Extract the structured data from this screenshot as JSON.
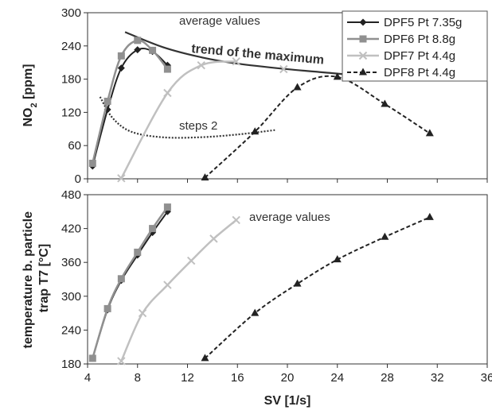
{
  "chart_data": [
    {
      "type": "line",
      "ylabel_parts": [
        "NO",
        "2",
        " [ppm]"
      ],
      "xlabel": "",
      "xlim": [
        4,
        36
      ],
      "ylim": [
        0,
        300
      ],
      "x_ticks": [
        "4",
        "8",
        "12",
        "16",
        "20",
        "24",
        "28",
        "32",
        "36"
      ],
      "y_ticks": [
        "0",
        "60",
        "120",
        "180",
        "240",
        "300"
      ],
      "annotations": {
        "average": "average values",
        "trend": "trend of the maximum",
        "steps": "steps 2"
      },
      "legend": [
        {
          "label": "DPF5 Pt 7.35g"
        },
        {
          "label": "DPF6 Pt 8.8g"
        },
        {
          "label": "DPF7 Pt 4.4g"
        },
        {
          "label": "DPF8 Pt 4.4g"
        }
      ],
      "series": [
        {
          "name": "DPF5 Pt 7.35g",
          "color": "#222222",
          "marker": "diamond",
          "dashed": false,
          "x": [
            4.4,
            5.6,
            6.7,
            8.0,
            9.2,
            10.4
          ],
          "y": [
            23,
            125,
            200,
            233,
            230,
            205
          ]
        },
        {
          "name": "DPF6 Pt 8.8g",
          "color": "#909090",
          "marker": "square",
          "dashed": false,
          "x": [
            4.4,
            5.6,
            6.7,
            8.0,
            9.2,
            10.4
          ],
          "y": [
            28,
            140,
            222,
            250,
            232,
            198
          ]
        },
        {
          "name": "DPF7 Pt 4.4g",
          "color": "#c0c0c0",
          "marker": "x",
          "dashed": false,
          "x": [
            6.7,
            10.4,
            13.1,
            15.9
          ],
          "y": [
            1,
            155,
            205,
            212
          ],
          "extra_x": [
            19.7
          ],
          "extra_y": [
            198
          ]
        },
        {
          "name": "DPF8 Pt 4.4g",
          "color": "#222222",
          "marker": "triangle",
          "dashed": true,
          "x": [
            13.4,
            17.4,
            20.8,
            24.0,
            27.8,
            31.4
          ],
          "y": [
            2,
            85,
            165,
            184,
            135,
            82
          ]
        }
      ],
      "trend_line": {
        "x": [
          7.0,
          10.0,
          13.0,
          16.0,
          20.0,
          24.0,
          28.0
        ],
        "y": [
          265,
          238,
          220,
          208,
          198,
          190,
          180
        ]
      },
      "steps_line": {
        "x": [
          5.0,
          6.0,
          7.5,
          10.0,
          13.0,
          16.0,
          19.0
        ],
        "y": [
          148,
          110,
          85,
          75,
          75,
          80,
          88
        ]
      }
    },
    {
      "type": "line",
      "ylabel_lines": [
        "temperature b. particle",
        "trap T7 [°C]"
      ],
      "xlabel": "SV [1/s]",
      "xlim": [
        4,
        36
      ],
      "ylim": [
        180,
        480
      ],
      "x_ticks": [
        "4",
        "8",
        "12",
        "16",
        "20",
        "24",
        "28",
        "32",
        "36"
      ],
      "y_ticks": [
        "180",
        "240",
        "300",
        "360",
        "420",
        "480"
      ],
      "annotations": {
        "average": "average values"
      },
      "series": [
        {
          "name": "DPF5 Pt 7.35g",
          "color": "#222222",
          "marker": "diamond",
          "dashed": false,
          "x": [
            4.4,
            5.6,
            6.7,
            8.0,
            9.2,
            10.4
          ],
          "y": [
            190,
            276,
            328,
            373,
            413,
            450
          ]
        },
        {
          "name": "DPF6 Pt 8.8g",
          "color": "#909090",
          "marker": "square",
          "dashed": false,
          "x": [
            4.4,
            5.6,
            6.7,
            8.0,
            9.2,
            10.4
          ],
          "y": [
            190,
            278,
            331,
            378,
            420,
            458
          ]
        },
        {
          "name": "DPF7 Pt 4.4g",
          "color": "#c0c0c0",
          "marker": "x",
          "dashed": false,
          "x": [
            6.7,
            8.4,
            10.4,
            12.3,
            14.1,
            15.9
          ],
          "y": [
            185,
            270,
            320,
            363,
            402,
            435
          ]
        },
        {
          "name": "DPF8 Pt 4.4g",
          "color": "#222222",
          "marker": "triangle",
          "dashed": true,
          "x": [
            13.4,
            17.4,
            20.8,
            24.0,
            27.8,
            31.4
          ],
          "y": [
            190,
            270,
            322,
            365,
            405,
            440
          ]
        }
      ]
    }
  ]
}
